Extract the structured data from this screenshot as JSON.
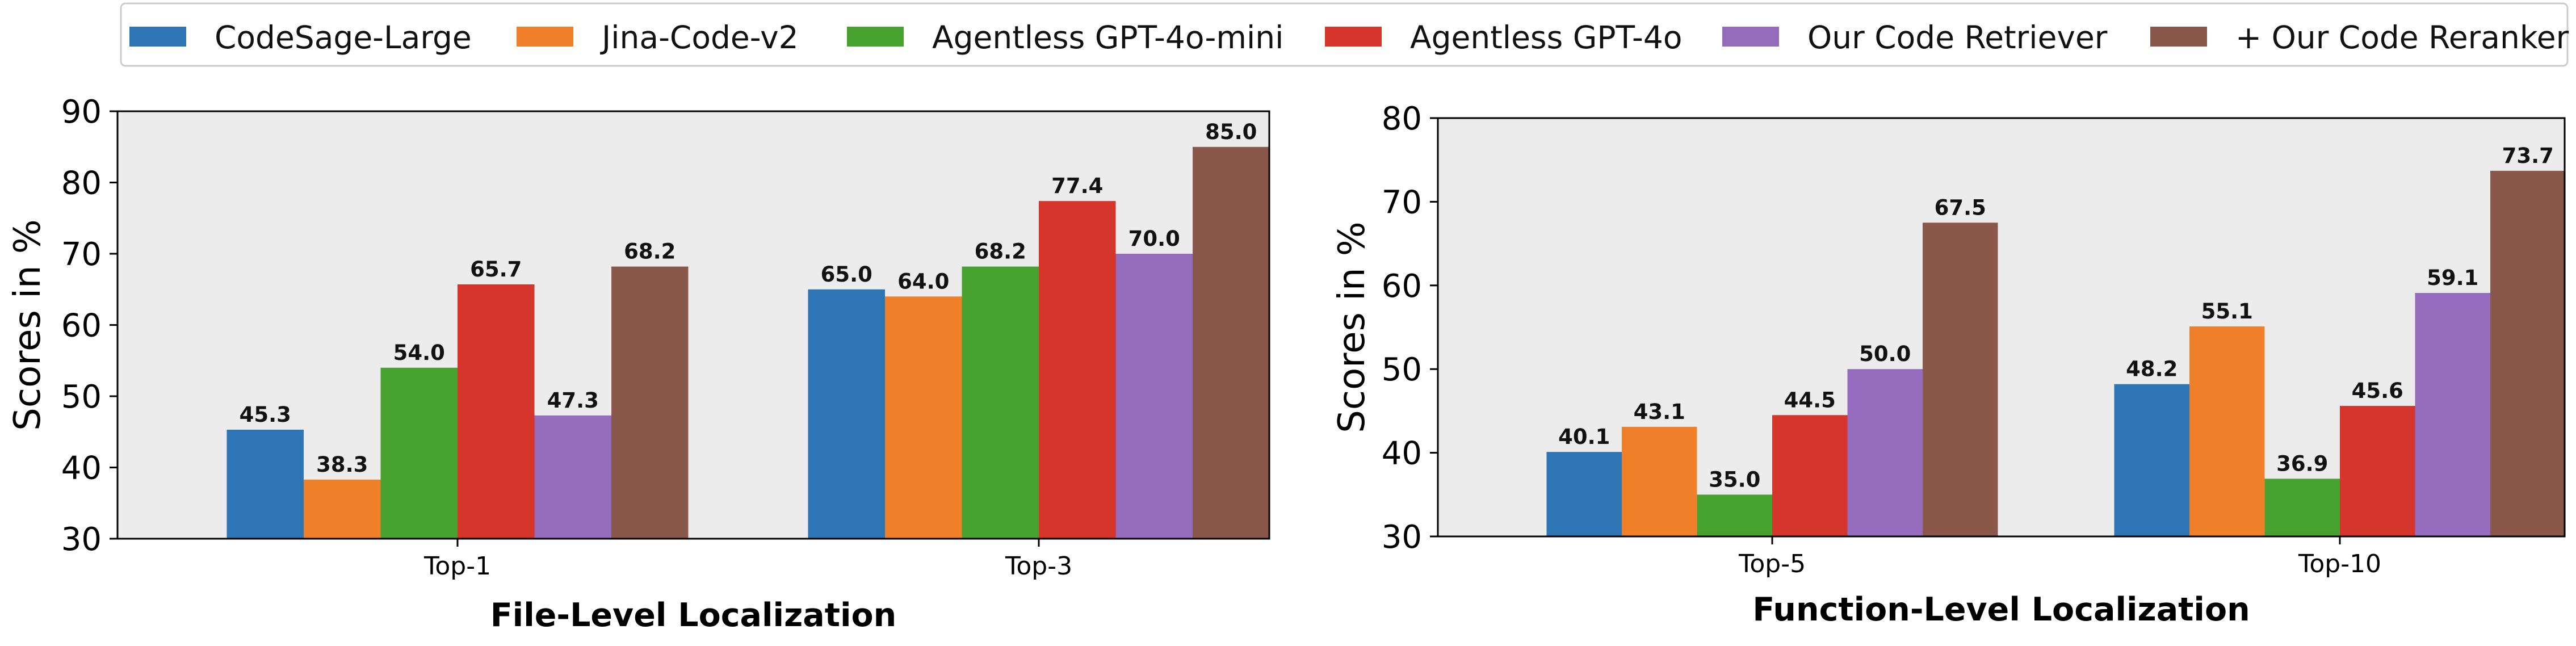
{
  "legend": {
    "placement": "top",
    "entries": [
      {
        "name": "CodeSage-Large",
        "color": "#2e75b6"
      },
      {
        "name": "Jina-Code-v2",
        "color": "#ef7f28"
      },
      {
        "name": "Agentless GPT-4o-mini",
        "color": "#47a22f"
      },
      {
        "name": "Agentless GPT-4o",
        "color": "#d6352b"
      },
      {
        "name": "Our Code Retriever",
        "color": "#946bbd"
      },
      {
        "name": "+ Our Code Reranker",
        "color": "#8a574b"
      }
    ]
  },
  "chart_data": [
    {
      "type": "bar",
      "title": "",
      "xlabel": "File-Level Localization",
      "ylabel": "Scores in %",
      "ylim": [
        30,
        90
      ],
      "yticks": [
        30,
        40,
        50,
        60,
        70,
        80,
        90
      ],
      "categories": [
        "Top-1",
        "Top-3"
      ],
      "grid": false,
      "series": [
        {
          "name": "CodeSage-Large",
          "values": [
            45.3,
            65.0
          ],
          "labels": [
            "45.3",
            "65.0"
          ]
        },
        {
          "name": "Jina-Code-v2",
          "values": [
            38.3,
            64.0
          ],
          "labels": [
            "38.3",
            "64.0"
          ]
        },
        {
          "name": "Agentless GPT-4o-mini",
          "values": [
            54.0,
            68.2
          ],
          "labels": [
            "54.0",
            "68.2"
          ]
        },
        {
          "name": "Agentless GPT-4o",
          "values": [
            65.7,
            77.4
          ],
          "labels": [
            "65.7",
            "77.4"
          ]
        },
        {
          "name": "Our Code Retriever",
          "values": [
            47.3,
            70.0
          ],
          "labels": [
            "47.3",
            "70.0"
          ]
        },
        {
          "name": "+ Our Code Reranker",
          "values": [
            68.2,
            85.0
          ],
          "labels": [
            "68.2",
            "85.0"
          ]
        }
      ]
    },
    {
      "type": "bar",
      "title": "",
      "xlabel": "Function-Level Localization",
      "ylabel": "Scores in %",
      "ylim": [
        30,
        80
      ],
      "yticks": [
        30,
        40,
        50,
        60,
        70,
        80
      ],
      "categories": [
        "Top-5",
        "Top-10"
      ],
      "grid": false,
      "series": [
        {
          "name": "CodeSage-Large",
          "values": [
            40.1,
            48.2
          ],
          "labels": [
            "40.1",
            "48.2"
          ]
        },
        {
          "name": "Jina-Code-v2",
          "values": [
            43.1,
            55.1
          ],
          "labels": [
            "43.1",
            "55.1"
          ]
        },
        {
          "name": "Agentless GPT-4o-mini",
          "values": [
            35.0,
            36.9
          ],
          "labels": [
            "35.0",
            "36.9"
          ]
        },
        {
          "name": "Agentless GPT-4o",
          "values": [
            44.5,
            45.6
          ],
          "labels": [
            "44.5",
            "45.6"
          ]
        },
        {
          "name": "Our Code Retriever",
          "values": [
            50.0,
            59.1
          ],
          "labels": [
            "50.0",
            "59.1"
          ]
        },
        {
          "name": "+ Our Code Reranker",
          "values": [
            67.5,
            73.7
          ],
          "labels": [
            "67.5",
            "73.7"
          ]
        }
      ]
    }
  ]
}
